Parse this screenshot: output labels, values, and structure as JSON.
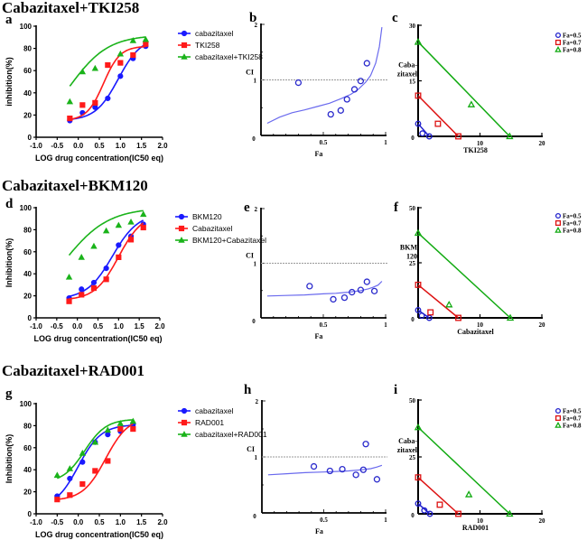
{
  "sections": [
    {
      "title": "Cabazitaxel+TKI258"
    },
    {
      "title": "Cabazitaxel+BKM120"
    },
    {
      "title": "Cabazitaxel+RAD001"
    }
  ],
  "panel_letters": [
    "a",
    "b",
    "c",
    "d",
    "e",
    "f",
    "g",
    "h",
    "i"
  ],
  "chart_data": [
    {
      "id": "a",
      "type": "line",
      "xlabel": "LOG drug concentration(IC50 eq)",
      "ylabel": "inhibition(%)",
      "xlim": [
        -1.0,
        2.0
      ],
      "ylim": [
        0,
        100
      ],
      "xticks": [
        "-1.0",
        "-0.5",
        "0.0",
        "0.5",
        "1.0",
        "1.5",
        "2.0"
      ],
      "yticks": [
        "0",
        "20",
        "40",
        "60",
        "80",
        "100"
      ],
      "legend_position": "right",
      "series": [
        {
          "name": "cabazitaxel",
          "color": "#1a1aff",
          "marker": "circle",
          "x": [
            -0.2,
            0.1,
            0.4,
            0.7,
            1.0,
            1.3,
            1.6
          ],
          "y": [
            15,
            22,
            27,
            35,
            55,
            71,
            82
          ],
          "fit": {
            "bottom": 15,
            "top": 90,
            "ec50": 0.95,
            "slope": 1.6
          }
        },
        {
          "name": "TKI258",
          "color": "#ff1a1a",
          "marker": "square",
          "x": [
            -0.2,
            0.1,
            0.4,
            0.7,
            1.0,
            1.3,
            1.6
          ],
          "y": [
            17,
            29,
            31,
            65,
            67,
            74,
            84
          ],
          "fit": {
            "bottom": 15,
            "top": 82,
            "ec50": 0.6,
            "slope": 2.2
          }
        },
        {
          "name": "cabazitaxel+TKI258",
          "color": "#1ab31a",
          "marker": "triangle",
          "x": [
            -0.2,
            0.1,
            0.4,
            1.0,
            1.3,
            1.6
          ],
          "y": [
            32,
            59,
            62,
            75,
            87,
            88
          ],
          "fit": {
            "bottom": 0,
            "top": 92,
            "ec50": -0.2,
            "slope": 0.95
          }
        }
      ]
    },
    {
      "id": "b",
      "type": "scatter",
      "xlabel": "Fa",
      "ylabel": "CI",
      "xlim": [
        0,
        1
      ],
      "ylim": [
        0,
        2
      ],
      "xticks": [
        "0",
        "0.5",
        "1"
      ],
      "yticks": [
        "1",
        "2"
      ],
      "reference_line": 1,
      "points": {
        "fa": [
          0.3,
          0.56,
          0.64,
          0.69,
          0.75,
          0.8,
          0.85
        ],
        "ci": [
          0.95,
          0.38,
          0.45,
          0.65,
          0.83,
          0.98,
          1.3
        ]
      },
      "curve": {
        "fa": [
          0.05,
          0.15,
          0.25,
          0.35,
          0.45,
          0.55,
          0.65,
          0.72,
          0.78,
          0.84,
          0.88,
          0.92,
          0.95,
          0.97
        ],
        "ci": [
          0.22,
          0.33,
          0.41,
          0.46,
          0.52,
          0.58,
          0.67,
          0.74,
          0.83,
          0.96,
          1.08,
          1.3,
          1.6,
          1.95
        ]
      },
      "color": "#2a2acc"
    },
    {
      "id": "c",
      "type": "scatter",
      "xlabel": "TKI258",
      "ylabel": "Caba-zitaxel",
      "xlim": [
        0,
        20
      ],
      "ylim": [
        0,
        30
      ],
      "xticks": [
        "0",
        "10",
        "20"
      ],
      "yticks": [
        "15",
        "30"
      ],
      "legend": [
        {
          "label": "Fa=0.5",
          "color": "#2020cc",
          "marker": "circle",
          "line": [
            [
              0,
              3.4
            ],
            [
              1.8,
              0
            ]
          ],
          "points": [
            [
              0,
              3.4
            ],
            [
              1.8,
              0
            ],
            [
              0.7,
              0.8
            ]
          ]
        },
        {
          "label": "Fa=0.7",
          "color": "#dd1111",
          "marker": "square",
          "line": [
            [
              0,
              11
            ],
            [
              6.5,
              0
            ]
          ],
          "points": [
            [
              0,
              11
            ],
            [
              6.5,
              0
            ],
            [
              3.2,
              3.4
            ]
          ]
        },
        {
          "label": "Fa=0.8",
          "color": "#11aa11",
          "marker": "triangle",
          "line": [
            [
              0,
              25.5
            ],
            [
              14.8,
              0
            ]
          ],
          "points": [
            [
              0,
              25.5
            ],
            [
              14.8,
              0
            ],
            [
              8.6,
              8.6
            ]
          ]
        }
      ]
    },
    {
      "id": "d",
      "type": "line",
      "xlabel": "LOG drug concentration(IC50 eq)",
      "ylabel": "Inhibition(%)",
      "xlim": [
        -1.0,
        2.0
      ],
      "ylim": [
        0,
        100
      ],
      "xticks": [
        "-1.0",
        "-0.5",
        "0.0",
        "0.5",
        "1.0",
        "1.5",
        "2.0"
      ],
      "yticks": [
        "0",
        "20",
        "40",
        "60",
        "80",
        "100"
      ],
      "legend_position": "right",
      "series": [
        {
          "name": "BKM120",
          "color": "#1a1aff",
          "marker": "circle",
          "x": [
            -0.2,
            0.1,
            0.4,
            0.7,
            1.0,
            1.3,
            1.6
          ],
          "y": [
            18,
            26,
            32,
            45,
            66,
            74,
            85
          ],
          "fit": {
            "bottom": 17,
            "top": 95,
            "ec50": 0.85,
            "slope": 1.4
          }
        },
        {
          "name": "Cabazitaxel",
          "color": "#ff1a1a",
          "marker": "square",
          "x": [
            -0.2,
            0.1,
            0.4,
            0.7,
            1.0,
            1.3,
            1.6
          ],
          "y": [
            15,
            21,
            27,
            35,
            55,
            71,
            82
          ],
          "fit": {
            "bottom": 16,
            "top": 95,
            "ec50": 1.0,
            "slope": 1.5
          }
        },
        {
          "name": "BKM120+Cabazitaxel",
          "color": "#1ab31a",
          "marker": "triangle",
          "x": [
            -0.2,
            0.1,
            0.4,
            0.7,
            1.0,
            1.3,
            1.6
          ],
          "y": [
            37,
            55,
            65,
            79,
            84,
            87,
            94
          ],
          "fit": {
            "bottom": 0,
            "top": 100,
            "ec50": -0.35,
            "slope": 0.8
          }
        }
      ]
    },
    {
      "id": "e",
      "type": "scatter",
      "xlabel": "Fa",
      "ylabel": "CI",
      "xlim": [
        0,
        1
      ],
      "ylim": [
        0,
        2
      ],
      "xticks": [
        "0",
        "0.5",
        "1"
      ],
      "yticks": [
        "1",
        "2"
      ],
      "reference_line": 1,
      "points": {
        "fa": [
          0.39,
          0.58,
          0.67,
          0.73,
          0.8,
          0.85,
          0.91
        ],
        "ci": [
          0.58,
          0.34,
          0.37,
          0.47,
          0.51,
          0.66,
          0.49
        ]
      },
      "curve": {
        "fa": [
          0.05,
          0.2,
          0.35,
          0.5,
          0.6,
          0.7,
          0.8,
          0.86,
          0.9,
          0.94,
          0.97
        ],
        "ci": [
          0.4,
          0.41,
          0.42,
          0.44,
          0.45,
          0.47,
          0.5,
          0.53,
          0.56,
          0.6,
          0.67
        ]
      },
      "color": "#2a2acc"
    },
    {
      "id": "f",
      "type": "scatter",
      "xlabel": "Cabazitaxel",
      "ylabel": "BKM 120",
      "xlim": [
        0,
        20
      ],
      "ylim": [
        0,
        50
      ],
      "xticks": [
        "0",
        "10",
        "20"
      ],
      "yticks": [
        "25",
        "50"
      ],
      "legend": [
        {
          "label": "Fa=0.5",
          "color": "#2020cc",
          "marker": "circle",
          "line": [
            [
              0,
              3.5
            ],
            [
              1.8,
              0
            ]
          ],
          "points": [
            [
              0,
              3.5
            ],
            [
              1.8,
              0
            ],
            [
              0.6,
              1
            ]
          ]
        },
        {
          "label": "Fa=0.7",
          "color": "#dd1111",
          "marker": "square",
          "line": [
            [
              0,
              15
            ],
            [
              6.5,
              0
            ]
          ],
          "points": [
            [
              0,
              15
            ],
            [
              6.5,
              0
            ],
            [
              2,
              2.5
            ]
          ]
        },
        {
          "label": "Fa=0.8",
          "color": "#11aa11",
          "marker": "triangle",
          "line": [
            [
              0,
              38.5
            ],
            [
              14.9,
              0
            ]
          ],
          "points": [
            [
              0,
              38.5
            ],
            [
              14.9,
              0
            ],
            [
              5,
              6
            ]
          ]
        }
      ]
    },
    {
      "id": "g",
      "type": "line",
      "xlabel": "LOG drug concentration(IC50 eq)",
      "ylabel": "Inhibition(%)",
      "xlim": [
        -1.0,
        2.0
      ],
      "ylim": [
        0,
        100
      ],
      "xticks": [
        "-1.0",
        "-0.5",
        "0.0",
        "0.5",
        "1.0",
        "1.5",
        "2.0"
      ],
      "yticks": [
        "0",
        "20",
        "40",
        "60",
        "80",
        "100"
      ],
      "legend_position": "right",
      "series": [
        {
          "name": "cabazitaxel",
          "color": "#1a1aff",
          "marker": "circle",
          "x": [
            -0.5,
            -0.2,
            0.1,
            0.4,
            0.7,
            1.0,
            1.3
          ],
          "y": [
            16,
            32,
            47,
            65,
            72,
            75,
            81
          ],
          "fit": {
            "bottom": 5,
            "top": 81,
            "ec50": 0.0,
            "slope": 1.6
          }
        },
        {
          "name": "RAD001",
          "color": "#ff1a1a",
          "marker": "square",
          "x": [
            -0.5,
            -0.2,
            0.1,
            0.4,
            0.7,
            1.0,
            1.3
          ],
          "y": [
            13,
            17,
            27,
            39,
            48,
            77,
            77
          ],
          "fit": {
            "bottom": 12,
            "top": 88,
            "ec50": 0.65,
            "slope": 1.6
          }
        },
        {
          "name": "cabazitaxel+RAD001",
          "color": "#1ab31a",
          "marker": "triangle",
          "x": [
            -0.5,
            -0.2,
            0.1,
            0.4,
            0.7,
            1.0,
            1.3
          ],
          "y": [
            35,
            41,
            55,
            65,
            76,
            82,
            84
          ],
          "fit": {
            "bottom": 28,
            "top": 86,
            "ec50": 0.15,
            "slope": 1.7
          }
        }
      ]
    },
    {
      "id": "h",
      "type": "scatter",
      "xlabel": "Fa",
      "ylabel": "CI",
      "xlim": [
        0,
        1
      ],
      "ylim": [
        0,
        2
      ],
      "xticks": [
        "0",
        "0.5",
        "1"
      ],
      "yticks": [
        "1",
        "2"
      ],
      "reference_line": 1,
      "points": {
        "fa": [
          0.42,
          0.55,
          0.65,
          0.76,
          0.82,
          0.84,
          0.93
        ],
        "ci": [
          0.83,
          0.75,
          0.78,
          0.68,
          0.77,
          1.23,
          0.6
        ]
      },
      "curve": {
        "fa": [
          0.05,
          0.2,
          0.35,
          0.5,
          0.6,
          0.7,
          0.8,
          0.88,
          0.93,
          0.97
        ],
        "ci": [
          0.68,
          0.7,
          0.72,
          0.73,
          0.74,
          0.75,
          0.77,
          0.79,
          0.82,
          0.85
        ]
      },
      "color": "#2a2acc"
    },
    {
      "id": "i",
      "type": "scatter",
      "xlabel": "RAD001",
      "ylabel": "Caba-zitaxel",
      "xlim": [
        0,
        20
      ],
      "ylim": [
        0,
        50
      ],
      "xticks": [
        "0",
        "10",
        "20"
      ],
      "yticks": [
        "25",
        "50"
      ],
      "legend": [
        {
          "label": "Fa=0.5",
          "color": "#2020cc",
          "marker": "circle",
          "line": [
            [
              0,
              4.5
            ],
            [
              1.9,
              0
            ]
          ],
          "points": [
            [
              0,
              4.5
            ],
            [
              1.9,
              0
            ],
            [
              1,
              1.5
            ]
          ]
        },
        {
          "label": "Fa=0.7",
          "color": "#dd1111",
          "marker": "square",
          "line": [
            [
              0,
              16
            ],
            [
              6.5,
              0
            ]
          ],
          "points": [
            [
              0,
              16
            ],
            [
              6.5,
              0
            ],
            [
              3.5,
              4
            ]
          ]
        },
        {
          "label": "Fa=0.8",
          "color": "#11aa11",
          "marker": "triangle",
          "line": [
            [
              0,
              38
            ],
            [
              14.8,
              0
            ]
          ],
          "points": [
            [
              0,
              38
            ],
            [
              14.8,
              0
            ],
            [
              8.2,
              8.5
            ]
          ]
        }
      ]
    }
  ]
}
